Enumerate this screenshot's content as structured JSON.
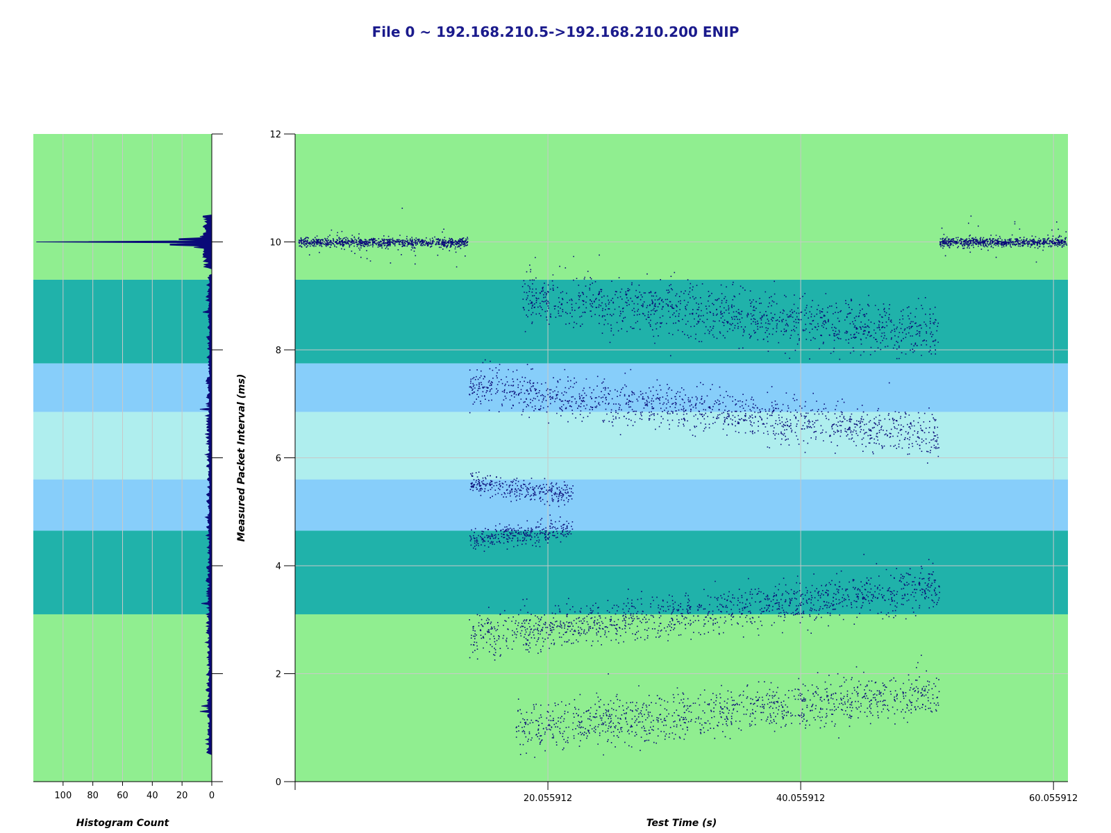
{
  "page": {
    "title": "File 0 ~ 192.168.210.5->192.168.210.200 ENIP"
  },
  "colors": {
    "light_green": "#90ee90",
    "teal": "#20b2aa",
    "sky_blue": "#87cefa",
    "pale_cyan": "#afeeee",
    "point": "#0a0a78",
    "grid": "#c8c8c8"
  },
  "chart_data": [
    {
      "type": "histogram",
      "orientation": "horizontal",
      "xlabel": "Histogram Count",
      "xlim": [
        120,
        0
      ],
      "xticks": [
        "100",
        "80",
        "60",
        "40",
        "20",
        "0"
      ],
      "ylim": [
        0,
        12
      ],
      "peaks": [
        {
          "y": 10.0,
          "count": 118
        },
        {
          "y": 9.95,
          "count": 28
        },
        {
          "y": 10.05,
          "count": 22
        },
        {
          "y": 9.9,
          "count": 12
        },
        {
          "y": 10.1,
          "count": 8
        },
        {
          "y": 1.3,
          "count": 8
        },
        {
          "y": 1.4,
          "count": 7
        },
        {
          "y": 3.3,
          "count": 7
        },
        {
          "y": 6.9,
          "count": 8
        },
        {
          "y": 8.7,
          "count": 6
        }
      ]
    },
    {
      "type": "scatter",
      "xlabel": "Test Time (s)",
      "ylabel": "Measured Packet Interval (ms)",
      "xlim": [
        0.055912,
        61.2
      ],
      "ylim": [
        0,
        12
      ],
      "xticks": [
        "20.055912",
        "40.055912",
        "60.055912"
      ],
      "yticks": [
        "0",
        "2",
        "4",
        "6",
        "8",
        "10",
        "12"
      ],
      "bands": [
        {
          "from": 0,
          "to": 3.1,
          "color": "#90ee90"
        },
        {
          "from": 3.1,
          "to": 4.65,
          "color": "#20b2aa"
        },
        {
          "from": 4.65,
          "to": 5.6,
          "color": "#87cefa"
        },
        {
          "from": 5.6,
          "to": 6.85,
          "color": "#afeeee"
        },
        {
          "from": 6.85,
          "to": 7.75,
          "color": "#87cefa"
        },
        {
          "from": 7.75,
          "to": 9.3,
          "color": "#20b2aa"
        },
        {
          "from": 9.3,
          "to": 12,
          "color": "#90ee90"
        }
      ],
      "clusters": [
        {
          "x0": 0.3,
          "x1": 13.7,
          "y0": 10.0,
          "y1": 10.0,
          "spread": 0.04,
          "n": 900
        },
        {
          "x0": 0.3,
          "x1": 13.7,
          "y0": 10.0,
          "y1": 10.0,
          "spread": 0.18,
          "n": 60
        },
        {
          "x0": 51.0,
          "x1": 61.1,
          "y0": 10.0,
          "y1": 10.0,
          "spread": 0.04,
          "n": 700
        },
        {
          "x0": 51.0,
          "x1": 61.1,
          "y0": 10.0,
          "y1": 10.0,
          "spread": 0.18,
          "n": 50
        },
        {
          "x0": 18.0,
          "x1": 51.0,
          "y0": 9.0,
          "y1": 8.3,
          "spread": 0.25,
          "n": 1200
        },
        {
          "x0": 13.8,
          "x1": 51.0,
          "y0": 7.3,
          "y1": 6.45,
          "spread": 0.2,
          "n": 1300
        },
        {
          "x0": 13.8,
          "x1": 22.0,
          "y0": 5.55,
          "y1": 5.3,
          "spread": 0.1,
          "n": 300
        },
        {
          "x0": 13.8,
          "x1": 22.0,
          "y0": 4.5,
          "y1": 4.7,
          "spread": 0.1,
          "n": 300
        },
        {
          "x0": 13.8,
          "x1": 51.0,
          "y0": 2.7,
          "y1": 3.6,
          "spread": 0.2,
          "n": 1300
        },
        {
          "x0": 17.5,
          "x1": 51.0,
          "y0": 1.0,
          "y1": 1.65,
          "spread": 0.22,
          "n": 1100
        }
      ]
    }
  ]
}
